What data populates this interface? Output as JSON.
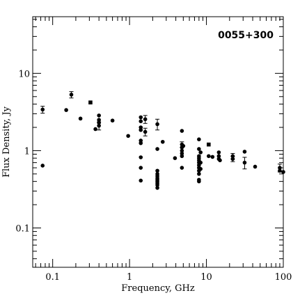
{
  "chart_data": {
    "type": "scatter",
    "title": "0055+300",
    "xlabel": "Frequency, GHz",
    "ylabel": "Flux Density, Jy",
    "x_scale": "log",
    "y_scale": "log",
    "xlim": [
      0.055,
      100
    ],
    "ylim": [
      0.031,
      54
    ],
    "x_ticks": [
      0.1,
      1,
      10,
      100
    ],
    "x_tick_labels": [
      "0.1",
      "1",
      "10",
      "100"
    ],
    "y_ticks": [
      0.1,
      1,
      10
    ],
    "y_tick_labels": [
      "0.1",
      "1",
      "10"
    ],
    "grid": false,
    "legend": "none",
    "series": [
      {
        "marker": "filled-circle",
        "color": "#000000",
        "points": [
          {
            "x": 0.074,
            "y": 3.4,
            "err": 0.35
          },
          {
            "x": 0.074,
            "y": 0.64
          },
          {
            "x": 0.15,
            "y": 3.35
          },
          {
            "x": 0.175,
            "y": 5.3,
            "err": 0.5
          },
          {
            "x": 0.23,
            "y": 2.6
          },
          {
            "x": 0.36,
            "y": 1.9
          },
          {
            "x": 0.4,
            "y": 2.85
          },
          {
            "x": 0.4,
            "y": 2.5
          },
          {
            "x": 0.4,
            "y": 2.3
          },
          {
            "x": 0.4,
            "y": 2.1,
            "err": 0.25
          },
          {
            "x": 0.6,
            "y": 2.45
          },
          {
            "x": 0.96,
            "y": 1.55
          },
          {
            "x": 1.4,
            "y": 2.7
          },
          {
            "x": 1.4,
            "y": 2.4
          },
          {
            "x": 1.4,
            "y": 2.0
          },
          {
            "x": 1.4,
            "y": 1.85
          },
          {
            "x": 1.4,
            "y": 1.35
          },
          {
            "x": 1.4,
            "y": 1.25
          },
          {
            "x": 1.4,
            "y": 0.82
          },
          {
            "x": 1.4,
            "y": 0.6
          },
          {
            "x": 1.4,
            "y": 0.41
          },
          {
            "x": 1.6,
            "y": 2.55,
            "err": 0.3
          },
          {
            "x": 1.6,
            "y": 1.75,
            "err": 0.2
          },
          {
            "x": 2.3,
            "y": 2.2,
            "err": 0.35
          },
          {
            "x": 2.3,
            "y": 1.05
          },
          {
            "x": 2.3,
            "y": 0.55
          },
          {
            "x": 2.3,
            "y": 0.5
          },
          {
            "x": 2.3,
            "y": 0.47
          },
          {
            "x": 2.3,
            "y": 0.44
          },
          {
            "x": 2.3,
            "y": 0.42
          },
          {
            "x": 2.3,
            "y": 0.4
          },
          {
            "x": 2.3,
            "y": 0.38
          },
          {
            "x": 2.3,
            "y": 0.36
          },
          {
            "x": 2.3,
            "y": 0.33
          },
          {
            "x": 2.7,
            "y": 1.3
          },
          {
            "x": 3.9,
            "y": 0.8
          },
          {
            "x": 4.8,
            "y": 1.8
          },
          {
            "x": 4.8,
            "y": 1.2,
            "err": 0.1
          },
          {
            "x": 4.8,
            "y": 1.1
          },
          {
            "x": 4.8,
            "y": 1.0
          },
          {
            "x": 4.8,
            "y": 0.92
          },
          {
            "x": 4.8,
            "y": 0.85
          },
          {
            "x": 4.8,
            "y": 0.6
          },
          {
            "x": 5.0,
            "y": 1.15
          },
          {
            "x": 8.0,
            "y": 1.4
          },
          {
            "x": 8.0,
            "y": 1.05
          },
          {
            "x": 8.0,
            "y": 0.85
          },
          {
            "x": 8.0,
            "y": 0.8
          },
          {
            "x": 8.0,
            "y": 0.75
          },
          {
            "x": 8.0,
            "y": 0.7
          },
          {
            "x": 8.0,
            "y": 0.65
          },
          {
            "x": 8.0,
            "y": 0.6
          },
          {
            "x": 8.0,
            "y": 0.55
          },
          {
            "x": 8.0,
            "y": 0.5
          },
          {
            "x": 8.0,
            "y": 0.42
          },
          {
            "x": 8.0,
            "y": 0.4
          },
          {
            "x": 8.4,
            "y": 0.95
          },
          {
            "x": 8.4,
            "y": 0.7
          },
          {
            "x": 8.4,
            "y": 0.58
          },
          {
            "x": 10.7,
            "y": 0.85
          },
          {
            "x": 12.0,
            "y": 0.83
          },
          {
            "x": 14.5,
            "y": 0.95
          },
          {
            "x": 14.5,
            "y": 0.85
          },
          {
            "x": 14.5,
            "y": 0.78
          },
          {
            "x": 15.0,
            "y": 0.75
          },
          {
            "x": 22.0,
            "y": 0.85,
            "err": 0.07
          },
          {
            "x": 22.0,
            "y": 0.78,
            "err": 0.06
          },
          {
            "x": 31.4,
            "y": 0.97
          },
          {
            "x": 31.4,
            "y": 0.7,
            "err": 0.12
          },
          {
            "x": 43.0,
            "y": 0.62
          },
          {
            "x": 90.0,
            "y": 0.6,
            "err": 0.07
          },
          {
            "x": 90.0,
            "y": 0.55
          },
          {
            "x": 100.0,
            "y": 0.53
          }
        ]
      },
      {
        "marker": "filled-square",
        "color": "#000000",
        "points": [
          {
            "x": 0.31,
            "y": 4.2
          },
          {
            "x": 10.7,
            "y": 1.2
          }
        ]
      }
    ]
  }
}
